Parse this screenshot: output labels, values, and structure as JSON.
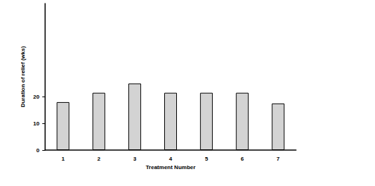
{
  "chart_data": {
    "type": "bar",
    "x_label": "Treatment Number",
    "y_label": "Duration of relief (wks)",
    "categories": [
      "1",
      "2",
      "3",
      "4",
      "5",
      "6",
      "7"
    ],
    "values": [
      18,
      21.5,
      25,
      21.5,
      21.5,
      21.5,
      17.5
    ],
    "color": "#d3d3d3",
    "ylim": [
      0,
      55
    ],
    "yticks": [
      0,
      10,
      20
    ],
    "grid": false
  }
}
